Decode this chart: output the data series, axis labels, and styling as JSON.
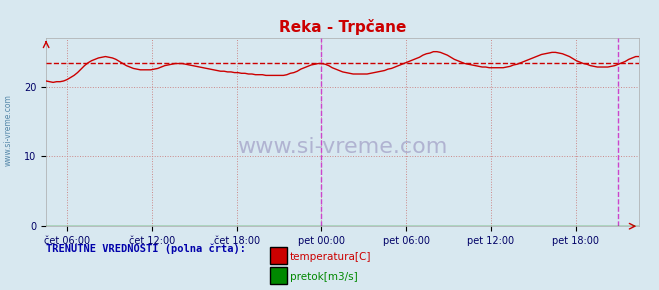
{
  "title": "Reka - Trpčane",
  "title_color": "#cc0000",
  "bg_color": "#d8e8f0",
  "plot_bg_color": "#d8e8f0",
  "ylabel": "",
  "ylim": [
    0,
    27
  ],
  "yticks": [
    0,
    10,
    20
  ],
  "xlim": [
    0,
    336
  ],
  "xlabel_ticks": [
    12,
    60,
    108,
    156,
    204,
    252,
    300
  ],
  "xlabel_labels": [
    "čet 06:00",
    "čet 12:00",
    "čet 18:00",
    "pet 00:00",
    "pet 06:00",
    "pet 12:00",
    "pet 18:00"
  ],
  "avg_line_value": 23.4,
  "avg_line_color": "#cc0000",
  "temp_line_color": "#cc0000",
  "pretok_line_color": "#008800",
  "vline_positions": [
    156,
    324
  ],
  "vline_color": "#cc44cc",
  "grid_color": "#cc8888",
  "grid_style": ":",
  "watermark": "www.si-vreme.com",
  "watermark_color": "#aaaacc",
  "legend_label1": "temperatura[C]",
  "legend_label2": "pretok[m3/s]",
  "legend_text": "TRENUTNE VREDNOSTI (polna črta):",
  "legend_text_color": "#0000aa",
  "sidebar_text": "www.si-vreme.com",
  "sidebar_color": "#5588aa",
  "arrow_color": "#cc0000",
  "temp_data": [
    20.8,
    20.7,
    20.6,
    20.7,
    20.7,
    20.8,
    21.0,
    21.3,
    21.6,
    22.0,
    22.5,
    23.0,
    23.4,
    23.7,
    23.9,
    24.1,
    24.2,
    24.3,
    24.2,
    24.1,
    23.9,
    23.6,
    23.3,
    23.0,
    22.8,
    22.6,
    22.5,
    22.4,
    22.4,
    22.4,
    22.4,
    22.5,
    22.6,
    22.8,
    23.0,
    23.1,
    23.2,
    23.3,
    23.3,
    23.3,
    23.2,
    23.1,
    23.0,
    22.9,
    22.8,
    22.7,
    22.6,
    22.5,
    22.4,
    22.3,
    22.2,
    22.2,
    22.1,
    22.1,
    22.0,
    22.0,
    21.9,
    21.9,
    21.8,
    21.8,
    21.7,
    21.7,
    21.7,
    21.6,
    21.6,
    21.6,
    21.6,
    21.6,
    21.6,
    21.7,
    21.9,
    22.0,
    22.2,
    22.5,
    22.7,
    22.9,
    23.1,
    23.2,
    23.3,
    23.3,
    23.2,
    23.0,
    22.7,
    22.5,
    22.3,
    22.1,
    22.0,
    21.9,
    21.8,
    21.8,
    21.8,
    21.8,
    21.8,
    21.9,
    22.0,
    22.1,
    22.2,
    22.3,
    22.5,
    22.6,
    22.8,
    23.0,
    23.2,
    23.4,
    23.6,
    23.8,
    24.0,
    24.2,
    24.5,
    24.7,
    24.8,
    25.0,
    25.0,
    24.9,
    24.7,
    24.5,
    24.2,
    23.9,
    23.7,
    23.5,
    23.3,
    23.2,
    23.1,
    23.0,
    22.9,
    22.8,
    22.8,
    22.7,
    22.7,
    22.7,
    22.7,
    22.7,
    22.8,
    22.9,
    23.1,
    23.2,
    23.4,
    23.6,
    23.8,
    24.0,
    24.2,
    24.4,
    24.6,
    24.7,
    24.8,
    24.9,
    24.9,
    24.8,
    24.7,
    24.5,
    24.3,
    24.0,
    23.7,
    23.5,
    23.3,
    23.2,
    23.0,
    22.9,
    22.8,
    22.8,
    22.8,
    22.8,
    22.9,
    23.0,
    23.2,
    23.4,
    23.6,
    23.9,
    24.1,
    24.3,
    24.3
  ],
  "pretok_data_value": 0.0
}
